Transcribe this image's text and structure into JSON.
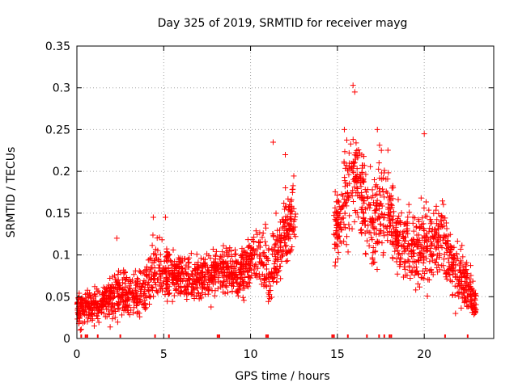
{
  "chart_data": {
    "type": "scatter",
    "title": "Day 325 of 2019, SRMTID for receiver mayg",
    "xlabel": "GPS time / hours",
    "ylabel": "SRMTID / TECUs",
    "xlim": [
      0,
      24
    ],
    "ylim": [
      0,
      0.35
    ],
    "x_ticks": [
      0,
      5,
      10,
      15,
      20
    ],
    "y_ticks": [
      0,
      0.05,
      0.1,
      0.15,
      0.2,
      0.25,
      0.3,
      0.35
    ],
    "x_tick_labels": [
      "0",
      "5",
      "10",
      "15",
      "20"
    ],
    "y_tick_labels": [
      "0",
      "0.05",
      "0.1",
      "0.15",
      "0.2",
      "0.25",
      "0.3",
      "0.35"
    ],
    "grid": true,
    "marker": "+",
    "series_color": "#ff0000",
    "envelope": {
      "description": "approximate central trend of the point cloud; points scatter around it",
      "x": [
        0.0,
        0.5,
        1.0,
        1.5,
        2.0,
        2.5,
        3.0,
        3.5,
        4.0,
        4.5,
        5.0,
        5.5,
        6.0,
        6.5,
        7.0,
        7.5,
        8.0,
        8.5,
        9.0,
        9.5,
        10.0,
        10.5,
        11.0,
        11.5,
        12.0,
        12.5,
        14.8,
        15.2,
        15.6,
        16.0,
        16.5,
        17.0,
        17.5,
        18.0,
        18.5,
        19.0,
        19.5,
        20.0,
        20.5,
        21.0,
        21.5,
        22.0,
        22.5,
        23.0
      ],
      "center": [
        0.035,
        0.04,
        0.04,
        0.045,
        0.05,
        0.055,
        0.055,
        0.05,
        0.06,
        0.085,
        0.08,
        0.075,
        0.075,
        0.07,
        0.07,
        0.075,
        0.08,
        0.085,
        0.075,
        0.08,
        0.1,
        0.1,
        0.08,
        0.1,
        0.13,
        0.15,
        0.13,
        0.15,
        0.17,
        0.2,
        0.16,
        0.14,
        0.16,
        0.15,
        0.12,
        0.11,
        0.1,
        0.12,
        0.11,
        0.13,
        0.09,
        0.08,
        0.06,
        0.04
      ],
      "spread": [
        0.015,
        0.015,
        0.015,
        0.015,
        0.018,
        0.02,
        0.02,
        0.02,
        0.02,
        0.03,
        0.025,
        0.02,
        0.02,
        0.02,
        0.02,
        0.02,
        0.02,
        0.02,
        0.02,
        0.025,
        0.025,
        0.025,
        0.03,
        0.035,
        0.035,
        0.03,
        0.03,
        0.035,
        0.04,
        0.05,
        0.04,
        0.04,
        0.045,
        0.04,
        0.03,
        0.03,
        0.03,
        0.04,
        0.03,
        0.035,
        0.025,
        0.025,
        0.02,
        0.015
      ]
    },
    "outliers": [
      {
        "x": 0.2,
        "y": 0.01
      },
      {
        "x": 1.0,
        "y": 0.015
      },
      {
        "x": 2.3,
        "y": 0.12
      },
      {
        "x": 4.4,
        "y": 0.145
      },
      {
        "x": 5.1,
        "y": 0.145
      },
      {
        "x": 11.3,
        "y": 0.235
      },
      {
        "x": 12.0,
        "y": 0.22
      },
      {
        "x": 15.4,
        "y": 0.25
      },
      {
        "x": 15.9,
        "y": 0.303
      },
      {
        "x": 16.0,
        "y": 0.295
      },
      {
        "x": 17.3,
        "y": 0.25
      },
      {
        "x": 20.0,
        "y": 0.245
      },
      {
        "x": 21.8,
        "y": 0.03
      }
    ],
    "missing_data_ticks_x": [
      0.25,
      0.5,
      0.6,
      1.2,
      2.5,
      4.5,
      5.3,
      8.1,
      8.2,
      10.9,
      11.0,
      14.7,
      14.8,
      15.6,
      16.7,
      17.4,
      17.7,
      18.0,
      18.1,
      21.2,
      22.5
    ]
  }
}
